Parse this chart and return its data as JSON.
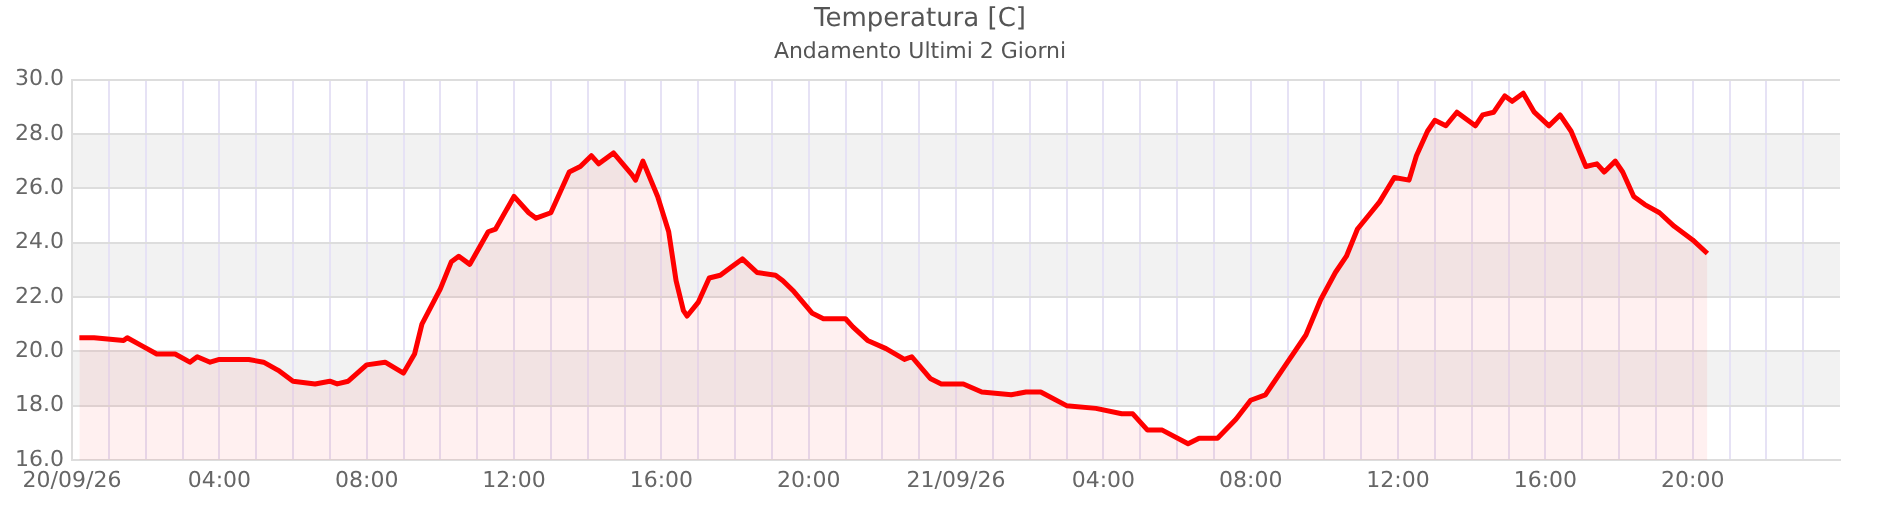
{
  "chart_data": {
    "type": "area",
    "title": "Temperatura [C]",
    "subtitle": "Andamento Ultimi 2 Giorni",
    "xlim": [
      "--09-20T00:00",
      "--09-22T00:00"
    ],
    "xticks": [
      {
        "value": "--09-20T00:00",
        "label": "20/09/26"
      },
      {
        "value": "--09-20T01:00",
        "label": null
      },
      {
        "value": "--09-20T02:00",
        "label": null
      },
      {
        "value": "--09-20T03:00",
        "label": null
      },
      {
        "value": "--09-20T04:00",
        "label": "04:00"
      },
      {
        "value": "--09-20T05:00",
        "label": null
      },
      {
        "value": "--09-20T06:00",
        "label": null
      },
      {
        "value": "--09-20T07:00",
        "label": null
      },
      {
        "value": "--09-20T08:00",
        "label": "08:00"
      },
      {
        "value": "--09-20T09:00",
        "label": null
      },
      {
        "value": "--09-20T10:00",
        "label": null
      },
      {
        "value": "--09-20T11:00",
        "label": null
      },
      {
        "value": "--09-20T12:00",
        "label": "12:00"
      },
      {
        "value": "--09-20T13:00",
        "label": null
      },
      {
        "value": "--09-20T14:00",
        "label": null
      },
      {
        "value": "--09-20T15:00",
        "label": null
      },
      {
        "value": "--09-20T16:00",
        "label": "16:00"
      },
      {
        "value": "--09-20T17:00",
        "label": null
      },
      {
        "value": "--09-20T18:00",
        "label": null
      },
      {
        "value": "--09-20T19:00",
        "label": null
      },
      {
        "value": "--09-20T20:00",
        "label": "20:00"
      },
      {
        "value": "--09-20T21:00",
        "label": null
      },
      {
        "value": "--09-20T22:00",
        "label": null
      },
      {
        "value": "--09-20T23:00",
        "label": null
      },
      {
        "value": "--09-21T00:00",
        "label": "21/09/26"
      },
      {
        "value": "--09-21T01:00",
        "label": null
      },
      {
        "value": "--09-21T02:00",
        "label": null
      },
      {
        "value": "--09-21T03:00",
        "label": null
      },
      {
        "value": "--09-21T04:00",
        "label": "04:00"
      },
      {
        "value": "--09-21T05:00",
        "label": null
      },
      {
        "value": "--09-21T06:00",
        "label": null
      },
      {
        "value": "--09-21T07:00",
        "label": null
      },
      {
        "value": "--09-21T08:00",
        "label": "08:00"
      },
      {
        "value": "--09-21T09:00",
        "label": null
      },
      {
        "value": "--09-21T10:00",
        "label": null
      },
      {
        "value": "--09-21T11:00",
        "label": null
      },
      {
        "value": "--09-21T12:00",
        "label": "12:00"
      },
      {
        "value": "--09-21T13:00",
        "label": null
      },
      {
        "value": "--09-21T14:00",
        "label": null
      },
      {
        "value": "--09-21T15:00",
        "label": null
      },
      {
        "value": "--09-21T16:00",
        "label": "16:00"
      },
      {
        "value": "--09-21T17:00",
        "label": null
      },
      {
        "value": "--09-21T18:00",
        "label": null
      },
      {
        "value": "--09-21T19:00",
        "label": null
      },
      {
        "value": "--09-21T20:00",
        "label": "20:00"
      },
      {
        "value": "--09-21T21:00",
        "label": null
      },
      {
        "value": "--09-21T22:00",
        "label": null
      },
      {
        "value": "--09-21T23:00",
        "label": null
      }
    ],
    "ylim": [
      16,
      30
    ],
    "yticks": [
      {
        "value": 16,
        "label": "16.0"
      },
      {
        "value": 18,
        "label": "18.0"
      },
      {
        "value": 20,
        "label": "20.0"
      },
      {
        "value": 22,
        "label": "22.0"
      },
      {
        "value": 24,
        "label": "24.0"
      },
      {
        "value": 26,
        "label": "26.0"
      },
      {
        "value": 28,
        "label": "28.0"
      },
      {
        "value": 30,
        "label": "30.0"
      }
    ],
    "grid": true,
    "bands": [
      {
        "axis": "y",
        "from": 18,
        "to": 20,
        "color": "#f2f2f2"
      },
      {
        "axis": "y",
        "from": 22,
        "to": 24,
        "color": "#f2f2f2"
      },
      {
        "axis": "y",
        "from": 26,
        "to": 28,
        "color": "#f2f2f2"
      }
    ],
    "series": [
      {
        "color": "#ff0000",
        "x": [
          "--09-20T00:12",
          "--09-20T00:36",
          "--09-20T01:24",
          "--09-20T01:30",
          "--09-20T01:54",
          "--09-20T02:18",
          "--09-20T02:48",
          "--09-20T03:12",
          "--09-20T03:24",
          "--09-20T03:45",
          "--09-20T04:00",
          "--09-20T04:48",
          "--09-20T05:12",
          "--09-20T05:36",
          "--09-20T06:00",
          "--09-20T06:36",
          "--09-20T07:00",
          "--09-20T07:12",
          "--09-20T07:30",
          "--09-20T08:00",
          "--09-20T08:30",
          "--09-20T09:00",
          "--09-20T09:18",
          "--09-20T09:30",
          "--09-20T10:00",
          "--09-20T10:18",
          "--09-20T10:30",
          "--09-20T10:48",
          "--09-20T11:18",
          "--09-20T11:30",
          "--09-20T12:00",
          "--09-20T12:24",
          "--09-20T12:36",
          "--09-20T13:00",
          "--09-20T13:30",
          "--09-20T13:48",
          "--09-20T14:06",
          "--09-20T14:18",
          "--09-20T14:42",
          "--09-20T15:12",
          "--09-20T15:18",
          "--09-20T15:30",
          "--09-20T15:54",
          "--09-20T16:12",
          "--09-20T16:24",
          "--09-20T16:36",
          "--09-20T16:42",
          "--09-20T17:00",
          "--09-20T17:18",
          "--09-20T17:36",
          "--09-20T17:54",
          "--09-20T18:12",
          "--09-20T18:36",
          "--09-20T19:06",
          "--09-20T19:18",
          "--09-20T19:36",
          "--09-20T20:06",
          "--09-20T20:24",
          "--09-20T21:00",
          "--09-20T21:12",
          "--09-20T21:36",
          "--09-20T22:06",
          "--09-20T22:36",
          "--09-20T22:48",
          "--09-20T23:18",
          "--09-20T23:36",
          "--09-21T00:12",
          "--09-21T00:42",
          "--09-21T01:30",
          "--09-21T01:54",
          "--09-21T02:18",
          "--09-21T03:00",
          "--09-21T03:48",
          "--09-21T04:30",
          "--09-21T04:48",
          "--09-21T05:12",
          "--09-21T05:36",
          "--09-21T06:18",
          "--09-21T06:36",
          "--09-21T07:06",
          "--09-21T07:36",
          "--09-21T08:00",
          "--09-21T08:24",
          "--09-21T08:54",
          "--09-21T09:30",
          "--09-21T09:54",
          "--09-21T10:18",
          "--09-21T10:36",
          "--09-21T10:54",
          "--09-21T11:12",
          "--09-21T11:30",
          "--09-21T11:54",
          "--09-21T12:18",
          "--09-21T12:30",
          "--09-21T12:48",
          "--09-21T13:00",
          "--09-21T13:18",
          "--09-21T13:36",
          "--09-21T14:06",
          "--09-21T14:18",
          "--09-21T14:36",
          "--09-21T14:54",
          "--09-21T15:06",
          "--09-21T15:24",
          "--09-21T15:42",
          "--09-21T16:06",
          "--09-21T16:24",
          "--09-21T16:42",
          "--09-21T17:06",
          "--09-21T17:24",
          "--09-21T17:36",
          "--09-21T17:54",
          "--09-21T18:06",
          "--09-21T18:24",
          "--09-21T18:42",
          "--09-21T19:06",
          "--09-21T19:30",
          "--09-21T20:00",
          "--09-21T20:24"
        ],
        "values": [
          20.5,
          20.5,
          20.4,
          20.5,
          20.2,
          19.9,
          19.9,
          19.6,
          19.8,
          19.6,
          19.7,
          19.7,
          19.6,
          19.3,
          18.9,
          18.8,
          18.9,
          18.8,
          18.9,
          19.5,
          19.6,
          19.2,
          19.9,
          21.0,
          22.3,
          23.3,
          23.5,
          23.2,
          24.4,
          24.5,
          25.7,
          25.1,
          24.9,
          25.1,
          26.6,
          26.8,
          27.2,
          26.9,
          27.3,
          26.5,
          26.3,
          27.0,
          25.7,
          24.4,
          22.6,
          21.5,
          21.3,
          21.8,
          22.7,
          22.8,
          23.1,
          23.4,
          22.9,
          22.8,
          22.6,
          22.2,
          21.4,
          21.2,
          21.2,
          20.9,
          20.4,
          20.1,
          19.7,
          19.8,
          19.0,
          18.8,
          18.8,
          18.5,
          18.4,
          18.5,
          18.5,
          18.0,
          17.9,
          17.7,
          17.7,
          17.1,
          17.1,
          16.6,
          16.8,
          16.8,
          17.5,
          18.2,
          18.4,
          19.4,
          20.6,
          21.9,
          22.9,
          23.5,
          24.5,
          25.0,
          25.5,
          26.4,
          26.3,
          27.2,
          28.1,
          28.5,
          28.3,
          28.8,
          28.3,
          28.7,
          28.8,
          29.4,
          29.2,
          29.5,
          28.8,
          28.3,
          28.7,
          28.1,
          26.8,
          26.9,
          26.6,
          27.0,
          26.6,
          25.7,
          25.4,
          25.1,
          24.6,
          24.1,
          23.6
        ]
      }
    ]
  }
}
